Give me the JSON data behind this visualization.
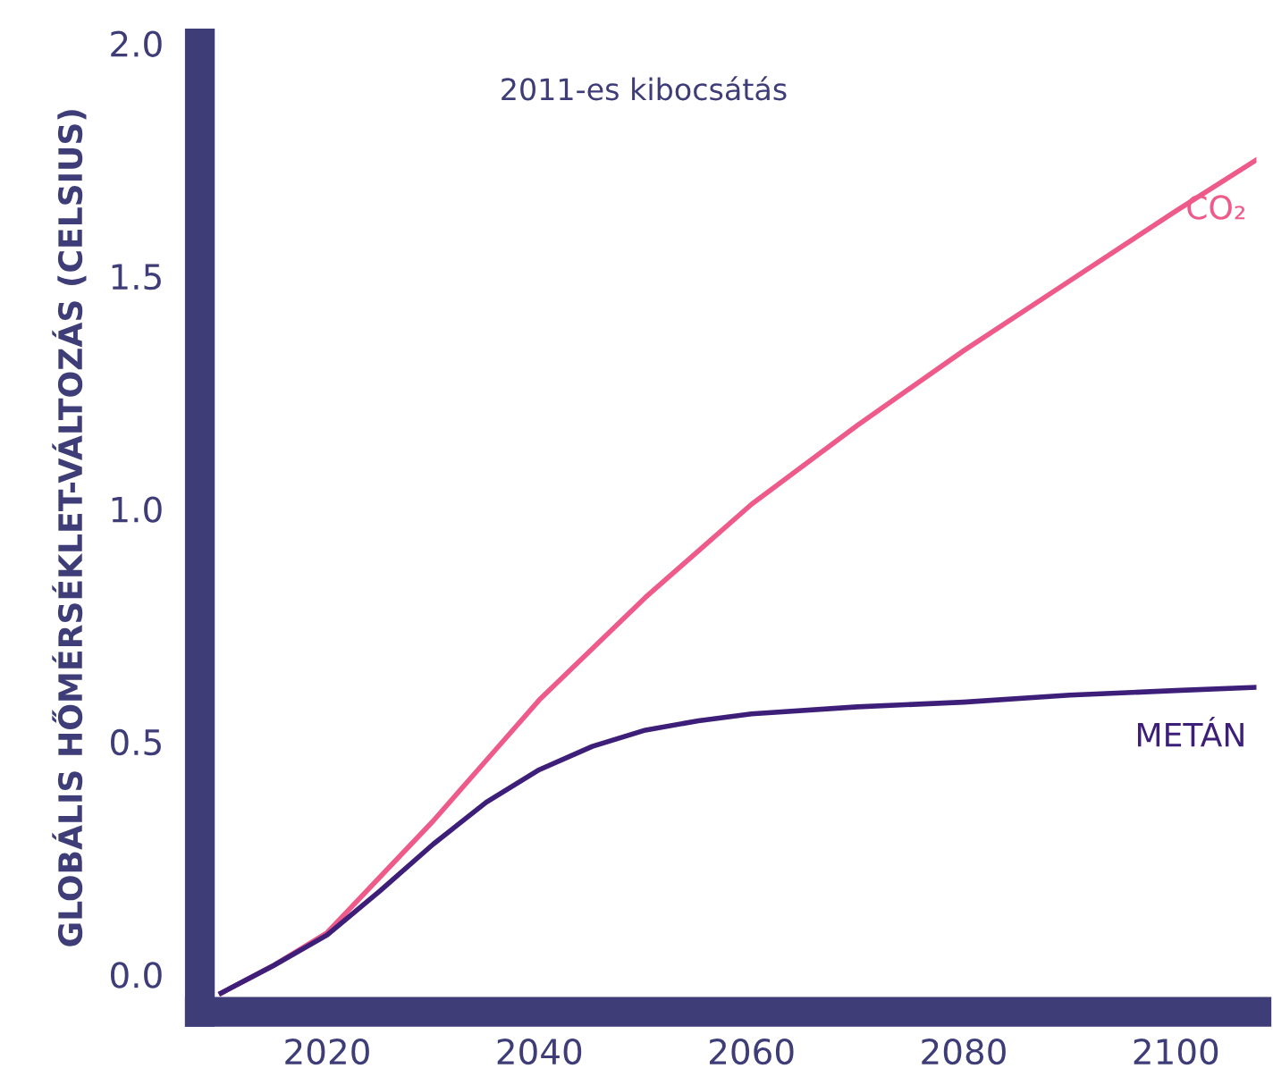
{
  "chart_data": {
    "type": "line",
    "title": "2011-es kibocsátás",
    "ylabel": "GLOBÁLIS HŐMÉRSÉKLET-VÁLTOZÁS (CELSIUS)",
    "x": [
      2010,
      2015,
      2020,
      2025,
      2030,
      2035,
      2040,
      2045,
      2050,
      2055,
      2060,
      2070,
      2080,
      2090,
      2100,
      2107.6
    ],
    "series": [
      {
        "name": "CO₂",
        "color": "#ee5a8a",
        "values": [
          -0.04,
          0.02,
          0.09,
          0.21,
          0.33,
          0.46,
          0.59,
          0.7,
          0.81,
          0.91,
          1.01,
          1.18,
          1.34,
          1.49,
          1.64,
          1.75
        ]
      },
      {
        "name": "METÁN",
        "color": "#3d1f7a",
        "values": [
          -0.04,
          0.02,
          0.085,
          0.18,
          0.28,
          0.37,
          0.44,
          0.49,
          0.525,
          0.545,
          0.56,
          0.575,
          0.585,
          0.6,
          0.61,
          0.617
        ]
      }
    ],
    "xlim": [
      2008,
      2107.6
    ],
    "ylim": [
      -0.08,
      2.0
    ],
    "xticks": [
      2020,
      2040,
      2060,
      2080,
      2100
    ],
    "yticks": [
      {
        "value": 0,
        "label": "0.0"
      },
      {
        "value": 0.5,
        "label": "0.5"
      },
      {
        "value": 1,
        "label": "1.0"
      },
      {
        "value": 1.5,
        "label": "1.5"
      },
      {
        "value": 2,
        "label": "2.0"
      }
    ],
    "grid": false,
    "legend": false,
    "marker": "none",
    "line_style": "solid"
  }
}
